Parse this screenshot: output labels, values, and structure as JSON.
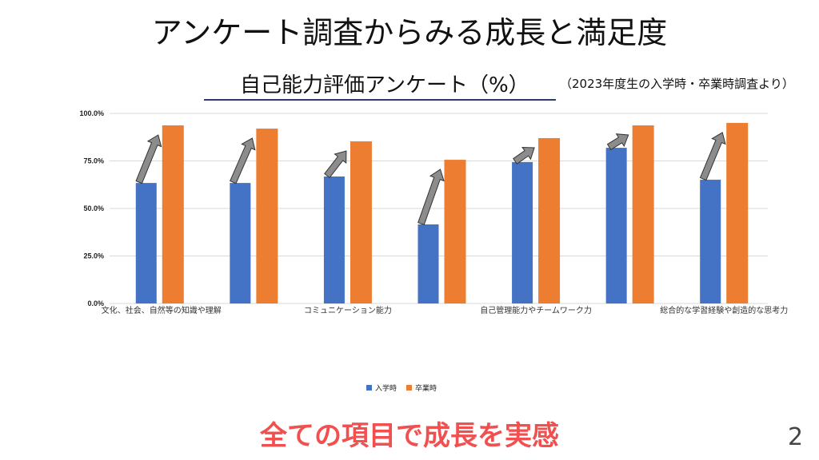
{
  "title": "アンケート調査からみる成長と満足度",
  "subtitle": "自己能力評価アンケート（%）",
  "note": "（2023年度生の入学時・卒業時調査より）",
  "conclusion": "全ての項目で成長を実感",
  "page_number": "2",
  "chart_data": {
    "type": "bar",
    "title": "自己能力評価アンケート（%）",
    "categories": [
      "文化、社会、自然等の知識や理解",
      "",
      "コミュニケーション能力",
      "",
      "自己管理能力やチームワーク力",
      "",
      "総合的な学習経験や創造的な思考力"
    ],
    "series": [
      {
        "name": "入学時",
        "color": "#4472c4",
        "values": [
          63.4,
          63.4,
          66.8,
          41.6,
          74.4,
          81.9,
          65.1
        ]
      },
      {
        "name": "卒業時",
        "color": "#ed7d31",
        "values": [
          93.7,
          92.0,
          85.3,
          75.6,
          87.0,
          93.7,
          95.0
        ]
      }
    ],
    "yticks": [
      "0.0%",
      "25.0%",
      "50.0%",
      "75.0%",
      "100.0%"
    ],
    "ylim": [
      0,
      100
    ],
    "grid": true,
    "legend": "bottom"
  }
}
